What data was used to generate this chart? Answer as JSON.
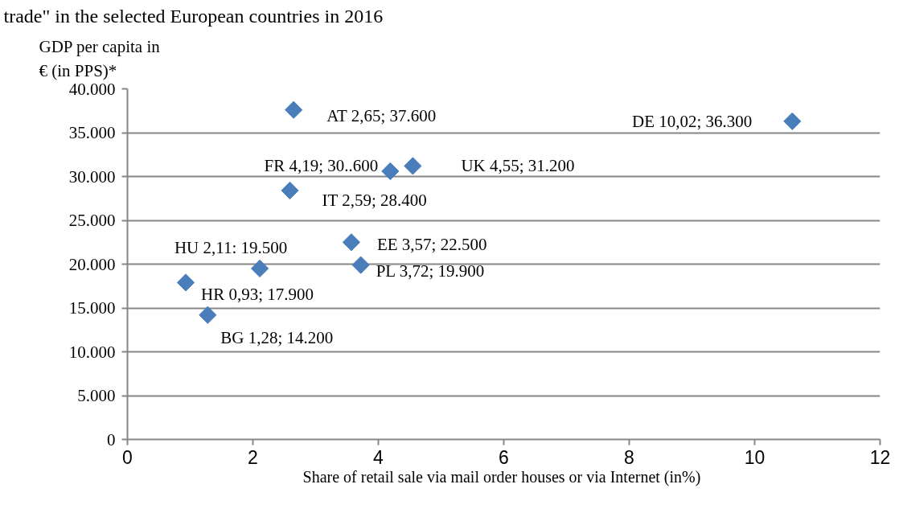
{
  "chart_data": {
    "type": "scatter",
    "title": "trade\" in the selected European countries in 2016",
    "xlabel": "Share of retail sale  via mail order houses or via Internet (in%)",
    "ylabel": "GDP per capita in\n€ (in PPS)*",
    "x": [
      0.93,
      1.28,
      2.11,
      2.59,
      2.65,
      3.57,
      3.72,
      4.19,
      4.55,
      10.6
    ],
    "values": [
      17900,
      14200,
      19500,
      28400,
      37600,
      22500,
      19900,
      30600,
      31200,
      36300
    ],
    "color": "#4a7ebb",
    "marker": "diamond",
    "grid": "y",
    "xlim": [
      0,
      12
    ],
    "ylim": [
      0,
      40000
    ],
    "xticks": [
      0,
      2,
      4,
      6,
      8,
      10,
      12
    ],
    "yticks": [
      0,
      {
        "value": 5000,
        "label": "5.000"
      },
      {
        "value": 10000,
        "label": "10.000"
      },
      {
        "value": 15000,
        "label": "15.000"
      },
      {
        "value": 20000,
        "label": "20.000"
      },
      {
        "value": 25000,
        "label": "25.000"
      },
      {
        "value": 30000,
        "label": "30.000"
      },
      {
        "value": 35000,
        "label": "35.000"
      },
      {
        "value": 40000,
        "label": "40.000"
      }
    ],
    "annotations": [
      {
        "text": "HR 0,93; 17.900",
        "x": 0.93,
        "y": 17900
      },
      {
        "text": "BG 1,28; 14.200",
        "x": 1.28,
        "y": 14200
      },
      {
        "text": "HU 2,11: 19.500",
        "x": 2.11,
        "y": 19500
      },
      {
        "text": "IT 2,59; 28.400",
        "x": 2.59,
        "y": 28400
      },
      {
        "text": "AT  2,65; 37.600",
        "x": 2.65,
        "y": 37600
      },
      {
        "text": "EE 3,57; 22.500",
        "x": 3.57,
        "y": 22500
      },
      {
        "text": "PL 3,72; 19.900",
        "x": 3.72,
        "y": 19900
      },
      {
        "text": "FR 4,19; 30..600",
        "x": 4.19,
        "y": 30600
      },
      {
        "text": "UK 4,55; 31.200",
        "x": 4.55,
        "y": 31200
      },
      {
        "text": "DE 10,02; 36.300",
        "x": 10.6,
        "y": 36300
      }
    ]
  }
}
